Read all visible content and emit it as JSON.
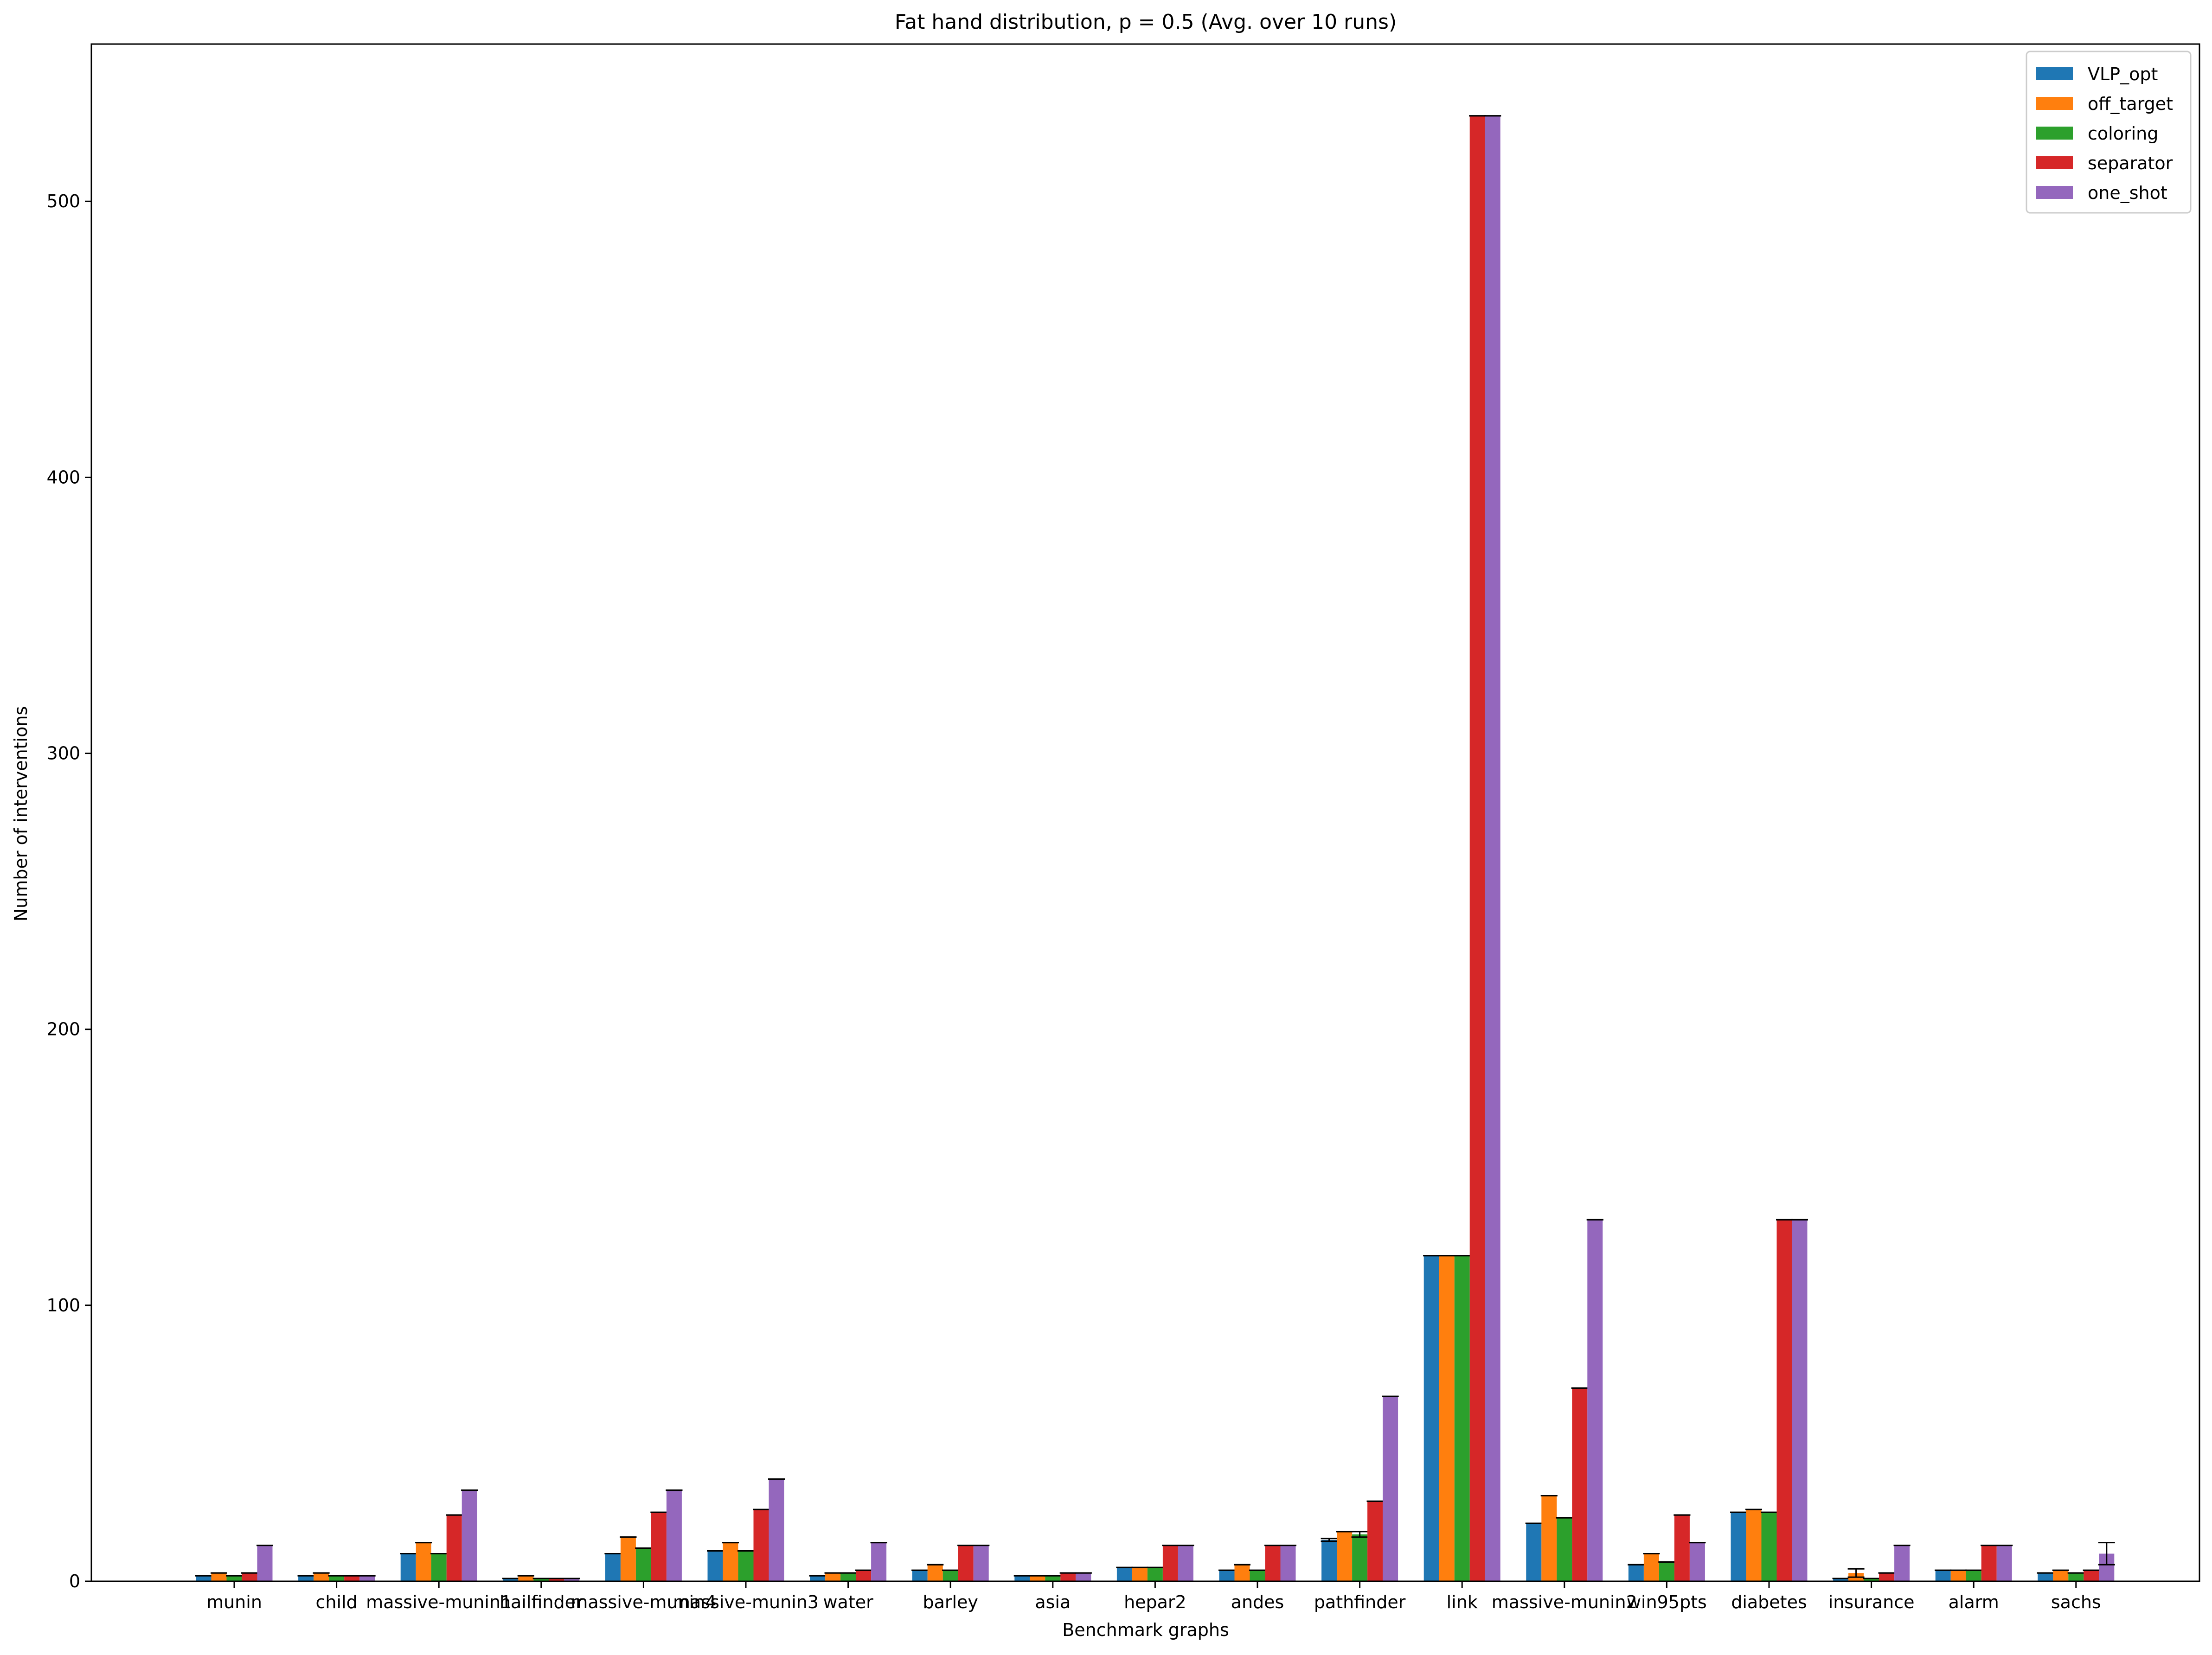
{
  "chart_data": {
    "type": "bar",
    "title": "Fat hand distribution, p = 0.5 (Avg. over 10 runs)",
    "xlabel": "Benchmark graphs",
    "ylabel": "Number of interventions",
    "ylim": [
      0,
      557
    ],
    "yticks": [
      0,
      100,
      200,
      300,
      400,
      500
    ],
    "legend_position": "top-right",
    "grid": false,
    "categories": [
      "munin",
      "child",
      "massive-munin1",
      "hailfinder",
      "massive-munin4",
      "massive-munin3",
      "water",
      "barley",
      "asia",
      "hepar2",
      "andes",
      "pathfinder",
      "link",
      "massive-munin2",
      "win95pts",
      "diabetes",
      "insurance",
      "alarm",
      "sachs"
    ],
    "series": [
      {
        "name": "VLP_opt",
        "color": "#1f77b4",
        "values": [
          2,
          2,
          10,
          1,
          10,
          11,
          2,
          4,
          2,
          5,
          4,
          15,
          118,
          21,
          6,
          25,
          1,
          4,
          3
        ]
      },
      {
        "name": "off_target",
        "color": "#ff7f0e",
        "values": [
          3,
          3,
          14,
          2,
          16,
          14,
          3,
          6,
          2,
          5,
          6,
          18,
          118,
          31,
          10,
          26,
          3,
          4,
          4
        ]
      },
      {
        "name": "coloring",
        "color": "#2ca02c",
        "values": [
          2,
          2,
          10,
          1,
          12,
          11,
          3,
          4,
          2,
          5,
          4,
          17,
          118,
          23,
          7,
          25,
          1,
          4,
          3
        ]
      },
      {
        "name": "separator",
        "color": "#d62728",
        "values": [
          3,
          2,
          24,
          1,
          25,
          26,
          4,
          13,
          3,
          13,
          13,
          29,
          531,
          70,
          24,
          131,
          3,
          13,
          4
        ]
      },
      {
        "name": "one_shot",
        "color": "#9467bd",
        "values": [
          13,
          2,
          33,
          1,
          33,
          37,
          14,
          13,
          3,
          13,
          13,
          67,
          531,
          131,
          14,
          131,
          13,
          13,
          10
        ]
      }
    ],
    "error_bars": [
      [
        0,
        0,
        0,
        0,
        0,
        0,
        0,
        0,
        0,
        0,
        0,
        0.5,
        0,
        0,
        0,
        0,
        0,
        0,
        0
      ],
      [
        0,
        0,
        0,
        0,
        0,
        0,
        0,
        0,
        0,
        0,
        0,
        0,
        0,
        0,
        0,
        0,
        1.5,
        0,
        0
      ],
      [
        0,
        0,
        0,
        0,
        0,
        0,
        0,
        0,
        0,
        0,
        0,
        1,
        0,
        0,
        0,
        0,
        0,
        0,
        0
      ],
      [
        0,
        0,
        0,
        0,
        0,
        0,
        0,
        0,
        0,
        0,
        0,
        0,
        0,
        0,
        0,
        0,
        0,
        0,
        0
      ],
      [
        0,
        0,
        0,
        0,
        0,
        0,
        0,
        0,
        0,
        0,
        0,
        0,
        0,
        0,
        0,
        0,
        0,
        0,
        4
      ]
    ]
  }
}
